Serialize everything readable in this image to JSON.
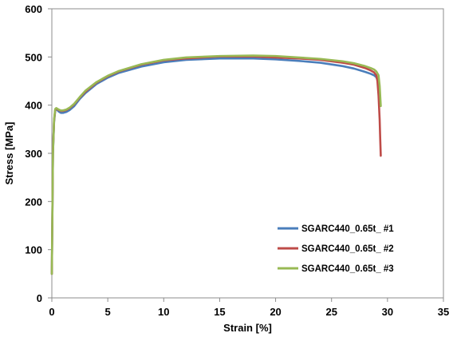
{
  "chart_data": {
    "type": "line",
    "xlabel": "Strain [%]",
    "ylabel": "Stress [MPa]",
    "xlim": [
      0,
      35
    ],
    "ylim": [
      0,
      600
    ],
    "x_ticks": [
      0,
      5,
      10,
      15,
      20,
      25,
      30,
      35
    ],
    "y_ticks": [
      0,
      100,
      200,
      300,
      400,
      500,
      600
    ],
    "grid": false,
    "legend_position": "bottom-right",
    "series": [
      {
        "name": "SGARC440_0.65t_ #1",
        "color": "#4a7ebb",
        "x": [
          0.0,
          0.1,
          0.2,
          0.3,
          0.4,
          0.6,
          0.8,
          1.0,
          1.3,
          1.6,
          2.0,
          2.5,
          3.0,
          4.0,
          5.0,
          6.0,
          8.0,
          10.0,
          12.0,
          15.0,
          18.0,
          20.0,
          22.0,
          24.0,
          26.0,
          27.0,
          28.0,
          28.5,
          28.8,
          29.0,
          29.1,
          29.2,
          29.3
        ],
        "y": [
          50,
          300,
          365,
          388,
          392,
          387,
          384,
          384,
          386,
          390,
          398,
          413,
          425,
          444,
          457,
          467,
          480,
          489,
          494,
          497,
          497,
          495,
          492,
          488,
          481,
          476,
          469,
          465,
          462,
          458,
          453,
          440,
          415
        ]
      },
      {
        "name": "SGARC440_0.65t_ #2",
        "color": "#be4b48",
        "x": [
          0.0,
          0.1,
          0.2,
          0.3,
          0.4,
          0.6,
          0.8,
          1.0,
          1.3,
          1.6,
          2.0,
          2.5,
          3.0,
          4.0,
          5.0,
          6.0,
          8.0,
          10.0,
          12.0,
          15.0,
          18.0,
          20.0,
          22.0,
          24.0,
          26.0,
          27.0,
          28.0,
          28.5,
          28.8,
          29.0,
          29.1,
          29.2,
          29.3,
          29.35,
          29.4
        ],
        "y": [
          50,
          305,
          368,
          390,
          393,
          390,
          388,
          388,
          390,
          394,
          402,
          416,
          428,
          447,
          460,
          470,
          484,
          493,
          497,
          501,
          501,
          499,
          497,
          494,
          488,
          484,
          477,
          472,
          468,
          462,
          450,
          420,
          370,
          330,
          295
        ]
      },
      {
        "name": "SGARC440_0.65t_ #3",
        "color": "#98b954",
        "x": [
          0.0,
          0.1,
          0.2,
          0.3,
          0.4,
          0.6,
          0.8,
          1.0,
          1.3,
          1.6,
          2.0,
          2.5,
          3.0,
          4.0,
          5.0,
          6.0,
          8.0,
          10.0,
          12.0,
          15.0,
          18.0,
          20.0,
          22.0,
          24.0,
          26.0,
          27.0,
          28.0,
          28.5,
          28.8,
          29.0,
          29.2,
          29.3,
          29.4
        ],
        "y": [
          50,
          300,
          370,
          392,
          394,
          391,
          389,
          389,
          391,
          395,
          403,
          417,
          430,
          448,
          461,
          471,
          485,
          494,
          499,
          502,
          503,
          502,
          499,
          496,
          491,
          487,
          481,
          477,
          474,
          470,
          462,
          440,
          398
        ]
      }
    ]
  }
}
